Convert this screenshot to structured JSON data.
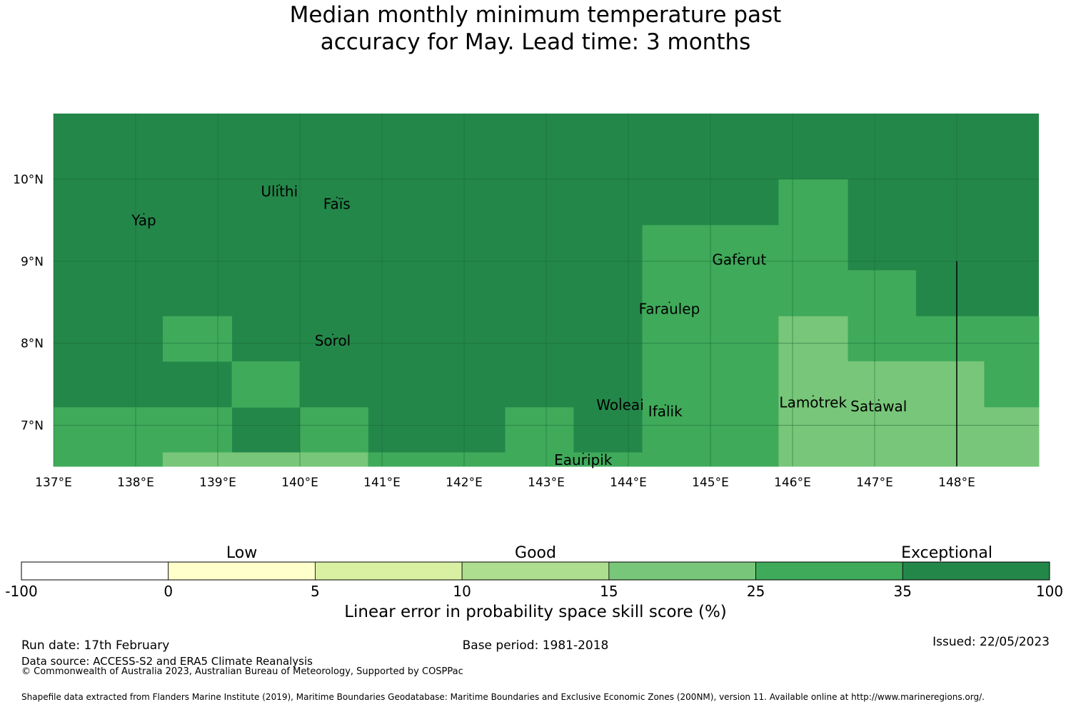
{
  "title": {
    "line1": "Median monthly minimum temperature past",
    "line2": "accuracy for May. Lead time: 3 months"
  },
  "colors": {
    "exceptional": "#24874a",
    "very_good": "#3faa5a",
    "good_high": "#78c679",
    "good_low": "#addd8e",
    "low_high": "#d9f0a3",
    "low_low": "#ffffcc",
    "none": "#ffffff",
    "grid": "#1a6a35"
  },
  "map": {
    "lon_range": [
      137,
      149
    ],
    "lat_range": [
      6.5,
      10.8
    ],
    "x_ticks": [
      {
        "value": 137,
        "label": "137°E"
      },
      {
        "value": 138,
        "label": "138°E"
      },
      {
        "value": 139,
        "label": "139°E"
      },
      {
        "value": 140,
        "label": "140°E"
      },
      {
        "value": 141,
        "label": "141°E"
      },
      {
        "value": 142,
        "label": "142°E"
      },
      {
        "value": 143,
        "label": "143°E"
      },
      {
        "value": 144,
        "label": "144°E"
      },
      {
        "value": 145,
        "label": "145°E"
      },
      {
        "value": 146,
        "label": "146°E"
      },
      {
        "value": 147,
        "label": "147°E"
      },
      {
        "value": 148,
        "label": "148°E"
      }
    ],
    "y_ticks": [
      {
        "value": 10,
        "label": "10°N"
      },
      {
        "value": 9,
        "label": "9°N"
      },
      {
        "value": 8,
        "label": "8°N"
      },
      {
        "value": 7,
        "label": "7°N"
      }
    ],
    "cells": [
      {
        "lon0": 138.33,
        "lon1": 139.17,
        "lat0": 7.78,
        "lat1": 8.33,
        "level": "very_good"
      },
      {
        "lon0": 139.17,
        "lon1": 140.0,
        "lat0": 7.22,
        "lat1": 7.78,
        "level": "very_good"
      },
      {
        "lon0": 137.0,
        "lon1": 139.17,
        "lat0": 6.5,
        "lat1": 7.22,
        "level": "very_good"
      },
      {
        "lon0": 140.0,
        "lon1": 140.83,
        "lat0": 6.5,
        "lat1": 7.22,
        "level": "very_good"
      },
      {
        "lon0": 138.33,
        "lon1": 140.83,
        "lat0": 6.5,
        "lat1": 6.67,
        "level": "good_high"
      },
      {
        "lon0": 142.5,
        "lon1": 143.33,
        "lat0": 6.5,
        "lat1": 7.22,
        "level": "very_good"
      },
      {
        "lon0": 140.83,
        "lon1": 142.5,
        "lat0": 6.5,
        "lat1": 6.67,
        "level": "very_good"
      },
      {
        "lon0": 143.33,
        "lon1": 144.17,
        "lat0": 6.5,
        "lat1": 6.67,
        "level": "very_good"
      },
      {
        "lon0": 144.17,
        "lon1": 145.83,
        "lat0": 6.5,
        "lat1": 9.44,
        "level": "very_good"
      },
      {
        "lon0": 145.83,
        "lon1": 146.67,
        "lat0": 8.33,
        "lat1": 10.0,
        "level": "very_good"
      },
      {
        "lon0": 146.67,
        "lon1": 147.5,
        "lat0": 7.78,
        "lat1": 8.89,
        "level": "very_good"
      },
      {
        "lon0": 147.5,
        "lon1": 149.0,
        "lat0": 7.78,
        "lat1": 8.33,
        "level": "very_good"
      },
      {
        "lon0": 148.33,
        "lon1": 149.0,
        "lat0": 7.22,
        "lat1": 7.78,
        "level": "very_good"
      },
      {
        "lon0": 145.83,
        "lon1": 146.67,
        "lat0": 6.5,
        "lat1": 8.33,
        "level": "good_high"
      },
      {
        "lon0": 146.67,
        "lon1": 148.33,
        "lat0": 6.5,
        "lat1": 7.78,
        "level": "good_high"
      },
      {
        "lon0": 148.33,
        "lon1": 149.0,
        "lat0": 6.5,
        "lat1": 7.22,
        "level": "good_high"
      }
    ],
    "boundary_line": {
      "lon": 148.0,
      "lat0": 6.5,
      "lat1": 9.0
    },
    "places": [
      {
        "name": "Yap",
        "lon": 138.1,
        "lat": 9.5
      },
      {
        "name": "Ulithi",
        "lon": 139.75,
        "lat": 9.85
      },
      {
        "name": "Faïs",
        "lon": 140.45,
        "lat": 9.7
      },
      {
        "name": "Gaferut",
        "lon": 145.35,
        "lat": 9.02
      },
      {
        "name": "Faraulep",
        "lon": 144.5,
        "lat": 8.42
      },
      {
        "name": "Sorol",
        "lon": 140.4,
        "lat": 8.03
      },
      {
        "name": "Woleai",
        "lon": 143.9,
        "lat": 7.25
      },
      {
        "name": "Ifalik",
        "lon": 144.45,
        "lat": 7.17
      },
      {
        "name": "Lamotrek",
        "lon": 146.25,
        "lat": 7.28
      },
      {
        "name": "Satawal",
        "lon": 147.05,
        "lat": 7.23
      },
      {
        "name": "Eauripik",
        "lon": 143.45,
        "lat": 6.58
      }
    ]
  },
  "legend": {
    "categories": [
      {
        "label": "Low",
        "at": 1.5
      },
      {
        "label": "Good",
        "at": 3.5
      },
      {
        "label": "Exceptional",
        "at": 6.3
      }
    ],
    "bins": [
      {
        "from": "-100",
        "to": "0",
        "level": "none"
      },
      {
        "from": "0",
        "to": "5",
        "level": "low_low"
      },
      {
        "from": "5",
        "to": "10",
        "level": "low_high"
      },
      {
        "from": "10",
        "to": "15",
        "level": "good_low"
      },
      {
        "from": "15",
        "to": "25",
        "level": "good_high"
      },
      {
        "from": "25",
        "to": "35",
        "level": "very_good"
      },
      {
        "from": "35",
        "to": "100",
        "level": "exceptional"
      }
    ],
    "tick_labels": [
      "-100",
      "0",
      "5",
      "10",
      "15",
      "25",
      "35",
      "100"
    ],
    "title": "Linear error in probability space skill score (%)"
  },
  "footer": {
    "run_date": "Run date: 17th February",
    "base_period": "Base period: 1981-2018",
    "issued": "Issued: 22/05/2023",
    "data_source": "Data source: ACCESS-S2 and ERA5 Climate Reanalysis",
    "copyright": "© Commonwealth of Australia 2023, Australian Bureau of Meteorology, Supported by COSPPac",
    "shapefile": "Shapefile data extracted from Flanders Marine Institute (2019), Maritime Boundaries Geodatabase: Maritime Boundaries and Exclusive Economic Zones (200NM), version 11. Available online at http://www.marineregions.org/."
  }
}
